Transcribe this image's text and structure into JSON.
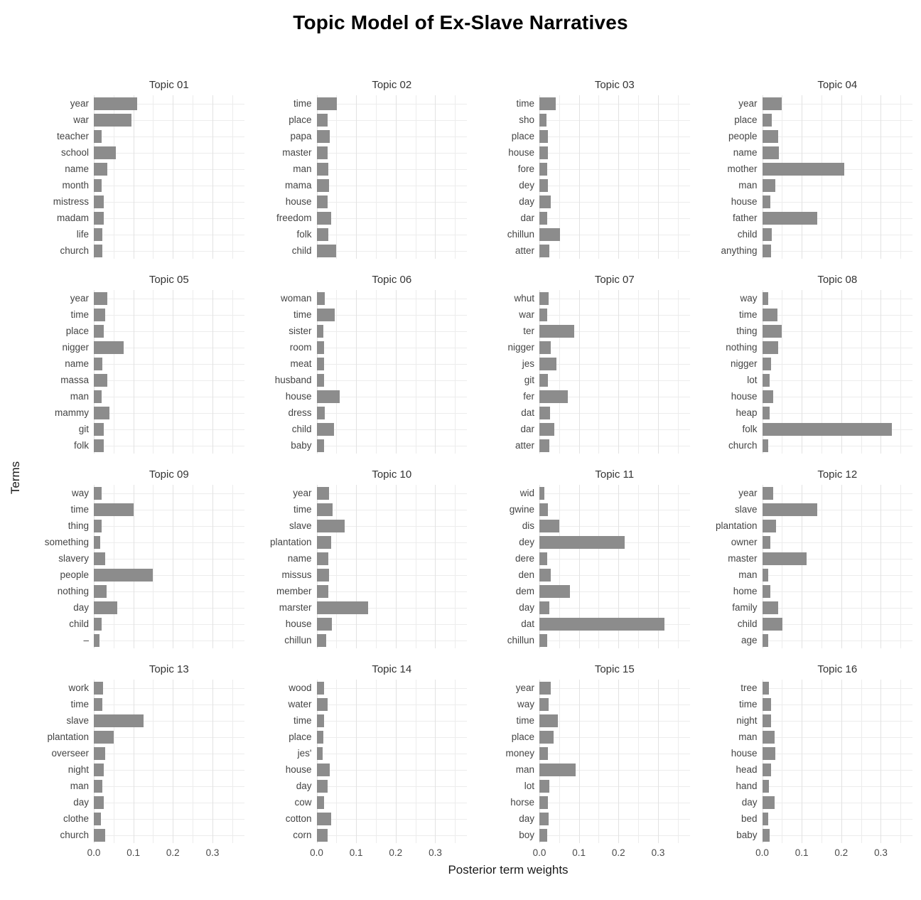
{
  "title": "Topic Model of Ex-Slave Narratives",
  "colors": {
    "bar": "#8c8c8c",
    "grid_major": "#e2e2e2",
    "grid_minor": "#ececec",
    "text": "#444444",
    "title": "#000000"
  },
  "chart_data": {
    "type": "bar",
    "orientation": "horizontal",
    "title": "Topic Model of Ex-Slave Narratives",
    "xlabel": "Posterior term weights",
    "ylabel": "Terms",
    "layout": "4x4 facet grid, shared x axis, free y categories, light grey grid on white",
    "xlim": [
      0,
      0.38
    ],
    "x_tick_values": [
      0,
      0.1,
      0.2,
      0.3
    ],
    "x_ticks": [
      "0.0",
      "0.1",
      "0.2",
      "0.3"
    ],
    "grid_x": [
      0,
      0.05,
      0.1,
      0.15,
      0.2,
      0.25,
      0.3,
      0.35
    ],
    "facets": [
      {
        "title": "Topic 01",
        "terms": [
          "year",
          "war",
          "teacher",
          "school",
          "name",
          "month",
          "mistress",
          "madam",
          "life",
          "church"
        ],
        "values": [
          0.11,
          0.095,
          0.02,
          0.055,
          0.035,
          0.02,
          0.026,
          0.025,
          0.022,
          0.022
        ]
      },
      {
        "title": "Topic 02",
        "terms": [
          "time",
          "place",
          "papa",
          "master",
          "man",
          "mama",
          "house",
          "freedom",
          "folk",
          "child"
        ],
        "values": [
          0.051,
          0.027,
          0.034,
          0.027,
          0.029,
          0.032,
          0.027,
          0.037,
          0.03,
          0.049
        ]
      },
      {
        "title": "Topic 03",
        "terms": [
          "time",
          "sho",
          "place",
          "house",
          "fore",
          "dey",
          "day",
          "dar",
          "chillun",
          "atter"
        ],
        "values": [
          0.042,
          0.018,
          0.021,
          0.022,
          0.02,
          0.022,
          0.028,
          0.019,
          0.053,
          0.026
        ]
      },
      {
        "title": "Topic 04",
        "terms": [
          "year",
          "place",
          "people",
          "name",
          "mother",
          "man",
          "house",
          "father",
          "child",
          "anything"
        ],
        "values": [
          0.049,
          0.025,
          0.041,
          0.043,
          0.208,
          0.034,
          0.021,
          0.14,
          0.025,
          0.023
        ]
      },
      {
        "title": "Topic 05",
        "terms": [
          "year",
          "time",
          "place",
          "nigger",
          "name",
          "massa",
          "man",
          "mammy",
          "git",
          "folk"
        ],
        "values": [
          0.034,
          0.029,
          0.026,
          0.076,
          0.021,
          0.034,
          0.02,
          0.04,
          0.025,
          0.026
        ]
      },
      {
        "title": "Topic 06",
        "terms": [
          "woman",
          "time",
          "sister",
          "room",
          "meat",
          "husband",
          "house",
          "dress",
          "child",
          "baby"
        ],
        "values": [
          0.021,
          0.045,
          0.017,
          0.018,
          0.019,
          0.018,
          0.058,
          0.021,
          0.044,
          0.019
        ]
      },
      {
        "title": "Topic 07",
        "terms": [
          "whut",
          "war",
          "ter",
          "nigger",
          "jes",
          "git",
          "fer",
          "dat",
          "dar",
          "atter"
        ],
        "values": [
          0.023,
          0.02,
          0.088,
          0.029,
          0.043,
          0.021,
          0.072,
          0.027,
          0.038,
          0.026
        ]
      },
      {
        "title": "Topic 08",
        "terms": [
          "way",
          "time",
          "thing",
          "nothing",
          "nigger",
          "lot",
          "house",
          "heap",
          "folk",
          "church"
        ],
        "values": [
          0.015,
          0.039,
          0.05,
          0.041,
          0.023,
          0.018,
          0.027,
          0.019,
          0.328,
          0.015
        ]
      },
      {
        "title": "Topic 09",
        "terms": [
          "way",
          "time",
          "thing",
          "something",
          "slavery",
          "people",
          "nothing",
          "day",
          "child",
          "–"
        ],
        "values": [
          0.019,
          0.1,
          0.02,
          0.016,
          0.028,
          0.149,
          0.033,
          0.059,
          0.019,
          0.015
        ]
      },
      {
        "title": "Topic 10",
        "terms": [
          "year",
          "time",
          "slave",
          "plantation",
          "name",
          "missus",
          "member",
          "marster",
          "house",
          "chillun"
        ],
        "values": [
          0.031,
          0.04,
          0.071,
          0.036,
          0.029,
          0.032,
          0.03,
          0.131,
          0.038,
          0.025
        ]
      },
      {
        "title": "Topic 11",
        "terms": [
          "wid",
          "gwine",
          "dis",
          "dey",
          "dere",
          "den",
          "dem",
          "day",
          "dat",
          "chillun"
        ],
        "values": [
          0.013,
          0.022,
          0.051,
          0.215,
          0.019,
          0.029,
          0.077,
          0.025,
          0.317,
          0.019
        ]
      },
      {
        "title": "Topic 12",
        "terms": [
          "year",
          "slave",
          "plantation",
          "owner",
          "master",
          "man",
          "home",
          "family",
          "child",
          "age"
        ],
        "values": [
          0.028,
          0.14,
          0.035,
          0.02,
          0.113,
          0.016,
          0.021,
          0.041,
          0.052,
          0.015
        ]
      },
      {
        "title": "Topic 13",
        "terms": [
          "work",
          "time",
          "slave",
          "plantation",
          "overseer",
          "night",
          "man",
          "day",
          "clothe",
          "church"
        ],
        "values": [
          0.023,
          0.022,
          0.125,
          0.05,
          0.028,
          0.025,
          0.022,
          0.025,
          0.018,
          0.029
        ]
      },
      {
        "title": "Topic 14",
        "terms": [
          "wood",
          "water",
          "time",
          "place",
          "jes'",
          "house",
          "day",
          "cow",
          "cotton",
          "corn"
        ],
        "values": [
          0.018,
          0.028,
          0.019,
          0.017,
          0.015,
          0.034,
          0.027,
          0.018,
          0.036,
          0.028
        ]
      },
      {
        "title": "Topic 15",
        "terms": [
          "year",
          "way",
          "time",
          "place",
          "money",
          "man",
          "lot",
          "horse",
          "day",
          "boy"
        ],
        "values": [
          0.029,
          0.023,
          0.046,
          0.036,
          0.021,
          0.091,
          0.025,
          0.022,
          0.023,
          0.02
        ]
      },
      {
        "title": "Topic 16",
        "terms": [
          "tree",
          "time",
          "night",
          "man",
          "house",
          "head",
          "hand",
          "day",
          "bed",
          "baby"
        ],
        "values": [
          0.017,
          0.022,
          0.022,
          0.032,
          0.034,
          0.022,
          0.017,
          0.031,
          0.015,
          0.018
        ]
      }
    ]
  }
}
